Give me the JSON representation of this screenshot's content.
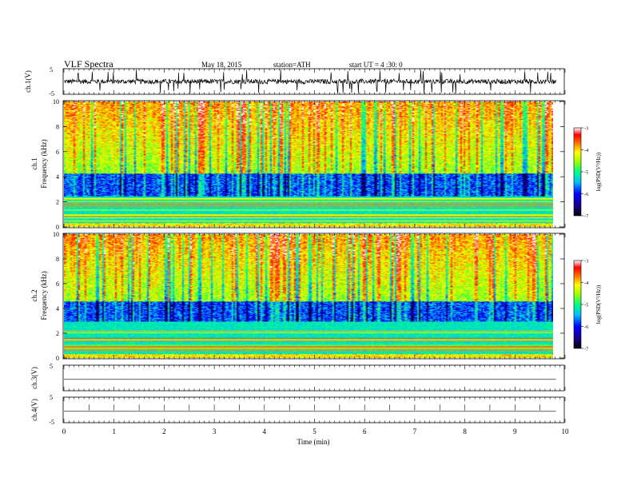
{
  "header": {
    "title": "VLF Spectra",
    "date": "May 18, 2015",
    "station": "station=ATH",
    "start": "start  UT  =   4 :30: 0"
  },
  "chart_data": [
    {
      "type": "line",
      "panel": "ch1-waveform",
      "ylabel": "ch.1(V)",
      "ylim": [
        -5,
        5
      ],
      "yticks": [
        "5",
        "-5"
      ],
      "description_values": {
        "baseline_v": 0,
        "noise_amplitude_v": 2.0,
        "spike_amplitude_v": 5.0
      }
    },
    {
      "type": "heatmap",
      "panel": "ch1-spectrogram",
      "ylabel_top": "ch.1",
      "ylabel": "Frequency  (kHz)",
      "ylim": [
        0,
        10
      ],
      "yticks": [
        "0",
        "2",
        "4",
        "6",
        "8",
        "10"
      ],
      "colorbar": {
        "label": "log(PSD(V²/Hz))",
        "range": [
          -7,
          -3
        ],
        "ticks": [
          "-3",
          "-4",
          "-5",
          "-6",
          "-7"
        ]
      },
      "dark_band_khz": [
        2.5,
        4.3
      ]
    },
    {
      "type": "heatmap",
      "panel": "ch2-spectrogram",
      "ylabel_top": "ch.2",
      "ylabel": "Frequency  (kHz)",
      "ylim": [
        0,
        10
      ],
      "yticks": [
        "0",
        "2",
        "4",
        "6",
        "8",
        "10"
      ],
      "colorbar": {
        "label": "log(PSD(V²/Hz))",
        "range": [
          -7,
          -3
        ],
        "ticks": [
          "-3",
          "-4",
          "-5",
          "-6",
          "-7"
        ]
      },
      "dark_band_khz": [
        3.0,
        4.6
      ]
    },
    {
      "type": "line",
      "panel": "ch3-waveform",
      "ylabel": "ch.3(V)",
      "ylim": [
        -5,
        5
      ],
      "yticks": [
        "5"
      ],
      "description_values": {
        "baseline_v": 0
      }
    },
    {
      "type": "line",
      "panel": "ch4-waveform",
      "ylabel": "ch.4(V)",
      "ylim": [
        -5,
        5
      ],
      "yticks": [
        "5",
        "-5"
      ],
      "description_values": {
        "baseline_v": 0
      }
    }
  ],
  "xaxis": {
    "label": "Time  (min)",
    "range": [
      0,
      10
    ],
    "data_end": 9.82,
    "ticks": [
      "0",
      "1",
      "2",
      "3",
      "4",
      "5",
      "6",
      "7",
      "8",
      "9",
      "10"
    ]
  },
  "colors": {
    "waveform": "#000000",
    "spectrogram_low": "#0000aa",
    "spectrogram_high": "#ff0000"
  }
}
